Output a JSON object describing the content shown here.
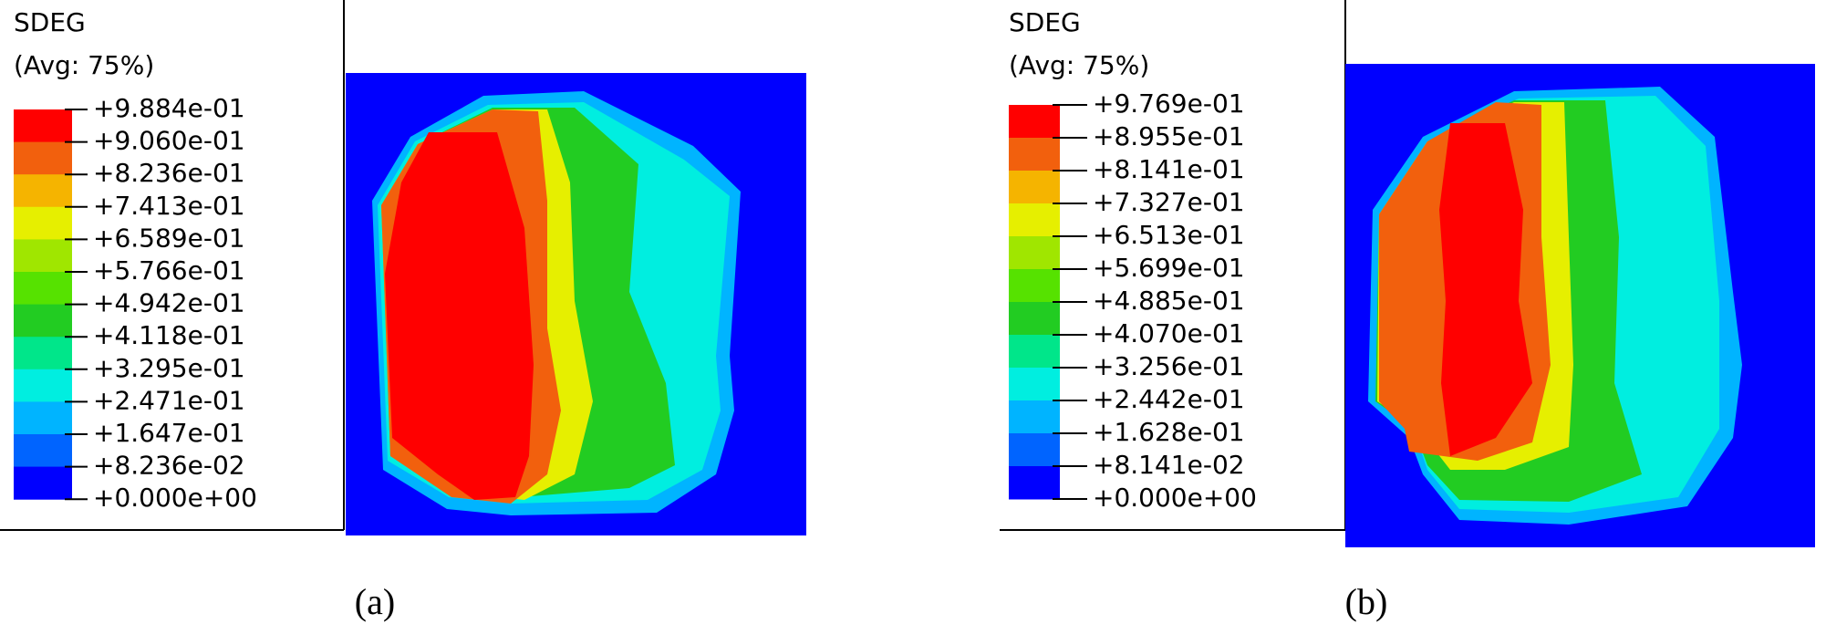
{
  "panels": [
    {
      "legend": {
        "title": "SDEG",
        "subtitle": "(Avg: 75%)",
        "labels": [
          "+9.884e-01",
          "+9.060e-01",
          "+8.236e-01",
          "+7.413e-01",
          "+6.589e-01",
          "+5.766e-01",
          "+4.942e-01",
          "+4.118e-01",
          "+3.295e-01",
          "+2.471e-01",
          "+1.647e-01",
          "+8.236e-02",
          "+0.000e+00"
        ],
        "colors": [
          "#ff0000",
          "#f2600d",
          "#f5b400",
          "#e6ef00",
          "#a0e600",
          "#56e200",
          "#22cc22",
          "#00e68a",
          "#00eee0",
          "#00b4ff",
          "#0064ff",
          "#0000ff"
        ]
      },
      "caption": "(a)"
    },
    {
      "legend": {
        "title": "SDEG",
        "subtitle": "(Avg: 75%)",
        "labels": [
          "+9.769e-01",
          "+8.955e-01",
          "+8.141e-01",
          "+7.327e-01",
          "+6.513e-01",
          "+5.699e-01",
          "+4.885e-01",
          "+4.070e-01",
          "+3.256e-01",
          "+2.442e-01",
          "+1.628e-01",
          "+8.141e-02",
          "+0.000e+00"
        ],
        "colors": [
          "#ff0000",
          "#f2600d",
          "#f5b400",
          "#e6ef00",
          "#a0e600",
          "#56e200",
          "#22cc22",
          "#00e68a",
          "#00eee0",
          "#00b4ff",
          "#0064ff",
          "#0000ff"
        ]
      },
      "caption": "(b)"
    }
  ]
}
